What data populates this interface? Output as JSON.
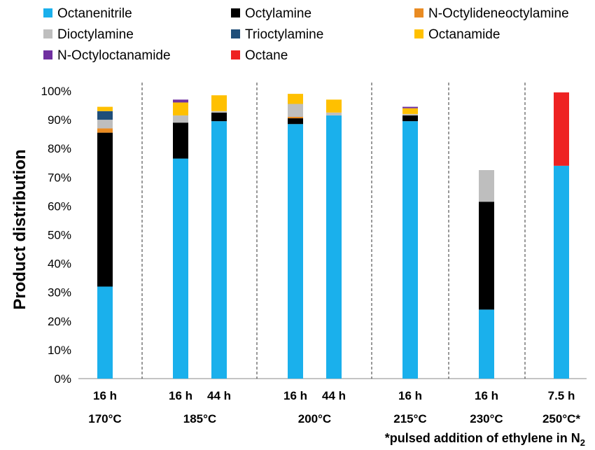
{
  "chart_data": {
    "type": "bar",
    "stacked": true,
    "ylabel": "Product distribution",
    "ylim": [
      0,
      100
    ],
    "yticks": [
      "0%",
      "10%",
      "20%",
      "30%",
      "40%",
      "50%",
      "60%",
      "70%",
      "80%",
      "90%",
      "100%"
    ],
    "legend_position": "top",
    "groups": [
      {
        "label": "170°C",
        "bars": [
          0
        ]
      },
      {
        "label": "185°C",
        "bars": [
          1,
          2
        ]
      },
      {
        "label": "200°C",
        "bars": [
          3,
          4
        ]
      },
      {
        "label": "215°C",
        "bars": [
          5
        ]
      },
      {
        "label": "230°C",
        "bars": [
          6
        ]
      },
      {
        "label": "250°C*",
        "bars": [
          7
        ]
      }
    ],
    "times": [
      "16 h",
      "16 h",
      "44 h",
      "16 h",
      "44 h",
      "16 h",
      "16 h",
      "7.5 h"
    ],
    "series": [
      {
        "name": "Octanenitrile",
        "color": "#1AB0EC",
        "values": [
          32,
          76.5,
          89.5,
          88.5,
          91.5,
          89.5,
          24,
          74
        ]
      },
      {
        "name": "Octylamine",
        "color": "#000000",
        "values": [
          53.5,
          12.5,
          3,
          2,
          0,
          2,
          37.5,
          0
        ]
      },
      {
        "name": "N-Octylideneoctylamine",
        "color": "#E98B22",
        "values": [
          1.5,
          0,
          0,
          0.5,
          0,
          0,
          0,
          0
        ]
      },
      {
        "name": "Dioctylamine",
        "color": "#BEBEBE",
        "values": [
          3,
          2.5,
          0.5,
          4.5,
          1,
          0.5,
          11,
          0
        ]
      },
      {
        "name": "Trioctylamine",
        "color": "#1F4E79",
        "values": [
          3,
          0,
          0,
          0,
          0,
          0,
          0,
          0
        ]
      },
      {
        "name": "Octanamide",
        "color": "#FFC000",
        "values": [
          1.5,
          4.5,
          5.5,
          3.5,
          4.5,
          2,
          0,
          0
        ]
      },
      {
        "name": "N-Octyloctanamide",
        "color": "#7030A0",
        "values": [
          0,
          1,
          0,
          0,
          0,
          0.5,
          0,
          0
        ]
      },
      {
        "name": "Octane",
        "color": "#EE2222",
        "values": [
          0,
          0,
          0,
          0,
          0,
          0,
          0,
          25.5
        ]
      }
    ],
    "footnote": "*pulsed addition of ethylene in N",
    "footnote_subscript": "2"
  }
}
